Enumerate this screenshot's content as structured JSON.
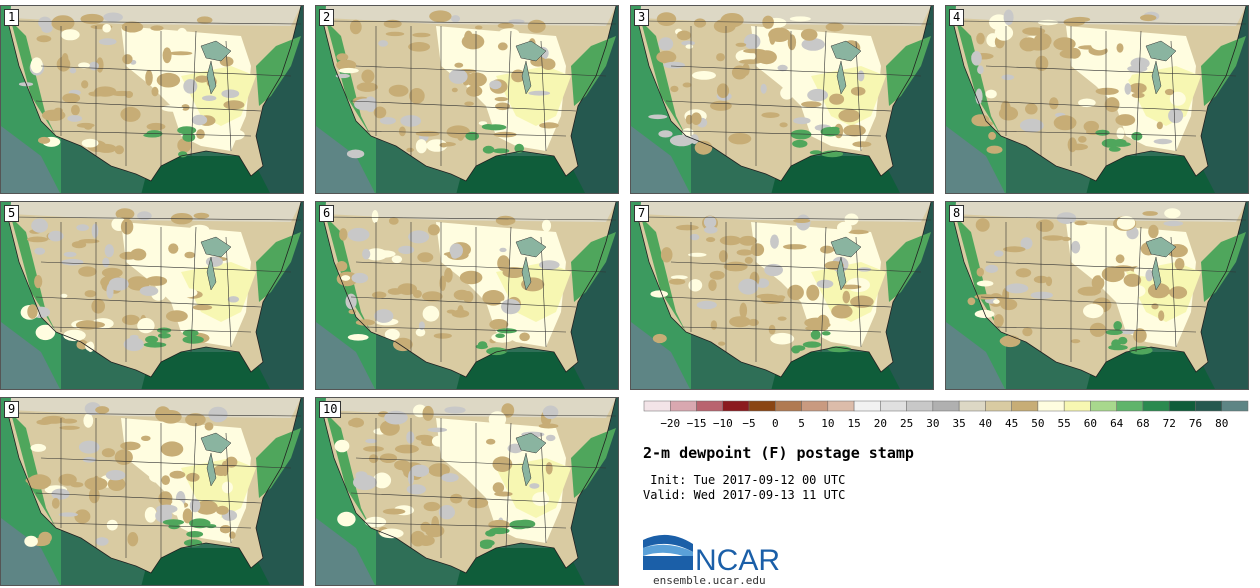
{
  "panels": [
    "1",
    "2",
    "3",
    "4",
    "5",
    "6",
    "7",
    "8",
    "9",
    "10"
  ],
  "colorbar": {
    "ticks": [
      "−20",
      "−15",
      "−10",
      "−5",
      "0",
      "5",
      "10",
      "15",
      "20",
      "25",
      "30",
      "35",
      "40",
      "45",
      "50",
      "55",
      "60",
      "64",
      "68",
      "72",
      "76",
      "80"
    ],
    "colors": [
      "#f3e4e8",
      "#d9a8b0",
      "#b9646f",
      "#8b1a1f",
      "#8a4513",
      "#b07a52",
      "#c99a80",
      "#dcbcaa",
      "#f2f2f2",
      "#e0e0e0",
      "#c8c8c8",
      "#b0b0b0",
      "#ddd8c5",
      "#d9cba2",
      "#c7ad76",
      "#fffde0",
      "#f7f7b2",
      "#a8d88d",
      "#5fb46b",
      "#2a8a4f",
      "#0f5d3a",
      "#25584f",
      "#5e8585"
    ]
  },
  "title": "2-m dewpoint (F) postage stamp",
  "init": " Init: Tue 2017-09-12 00 UTC",
  "valid": "Valid: Wed 2017-09-13 11 UTC",
  "logo": {
    "text": "NCAR",
    "site": "ensemble.ucar.edu",
    "color": "#1b5fa8"
  },
  "map_colors": {
    "ocean_deep": "#25584f",
    "ocean": "#2f6f57",
    "coast": "#4fa65c",
    "gulf": "#0f5d3a",
    "pacific": "#3c9a5f",
    "pacific_far": "#5e8585",
    "land_dry": "#c7ad76",
    "land_mid": "#d9cba2",
    "land_moist": "#fffde0",
    "land_green": "#f7f7b2",
    "gray": "#c8c8c8",
    "canada": "#ddd8c5"
  }
}
